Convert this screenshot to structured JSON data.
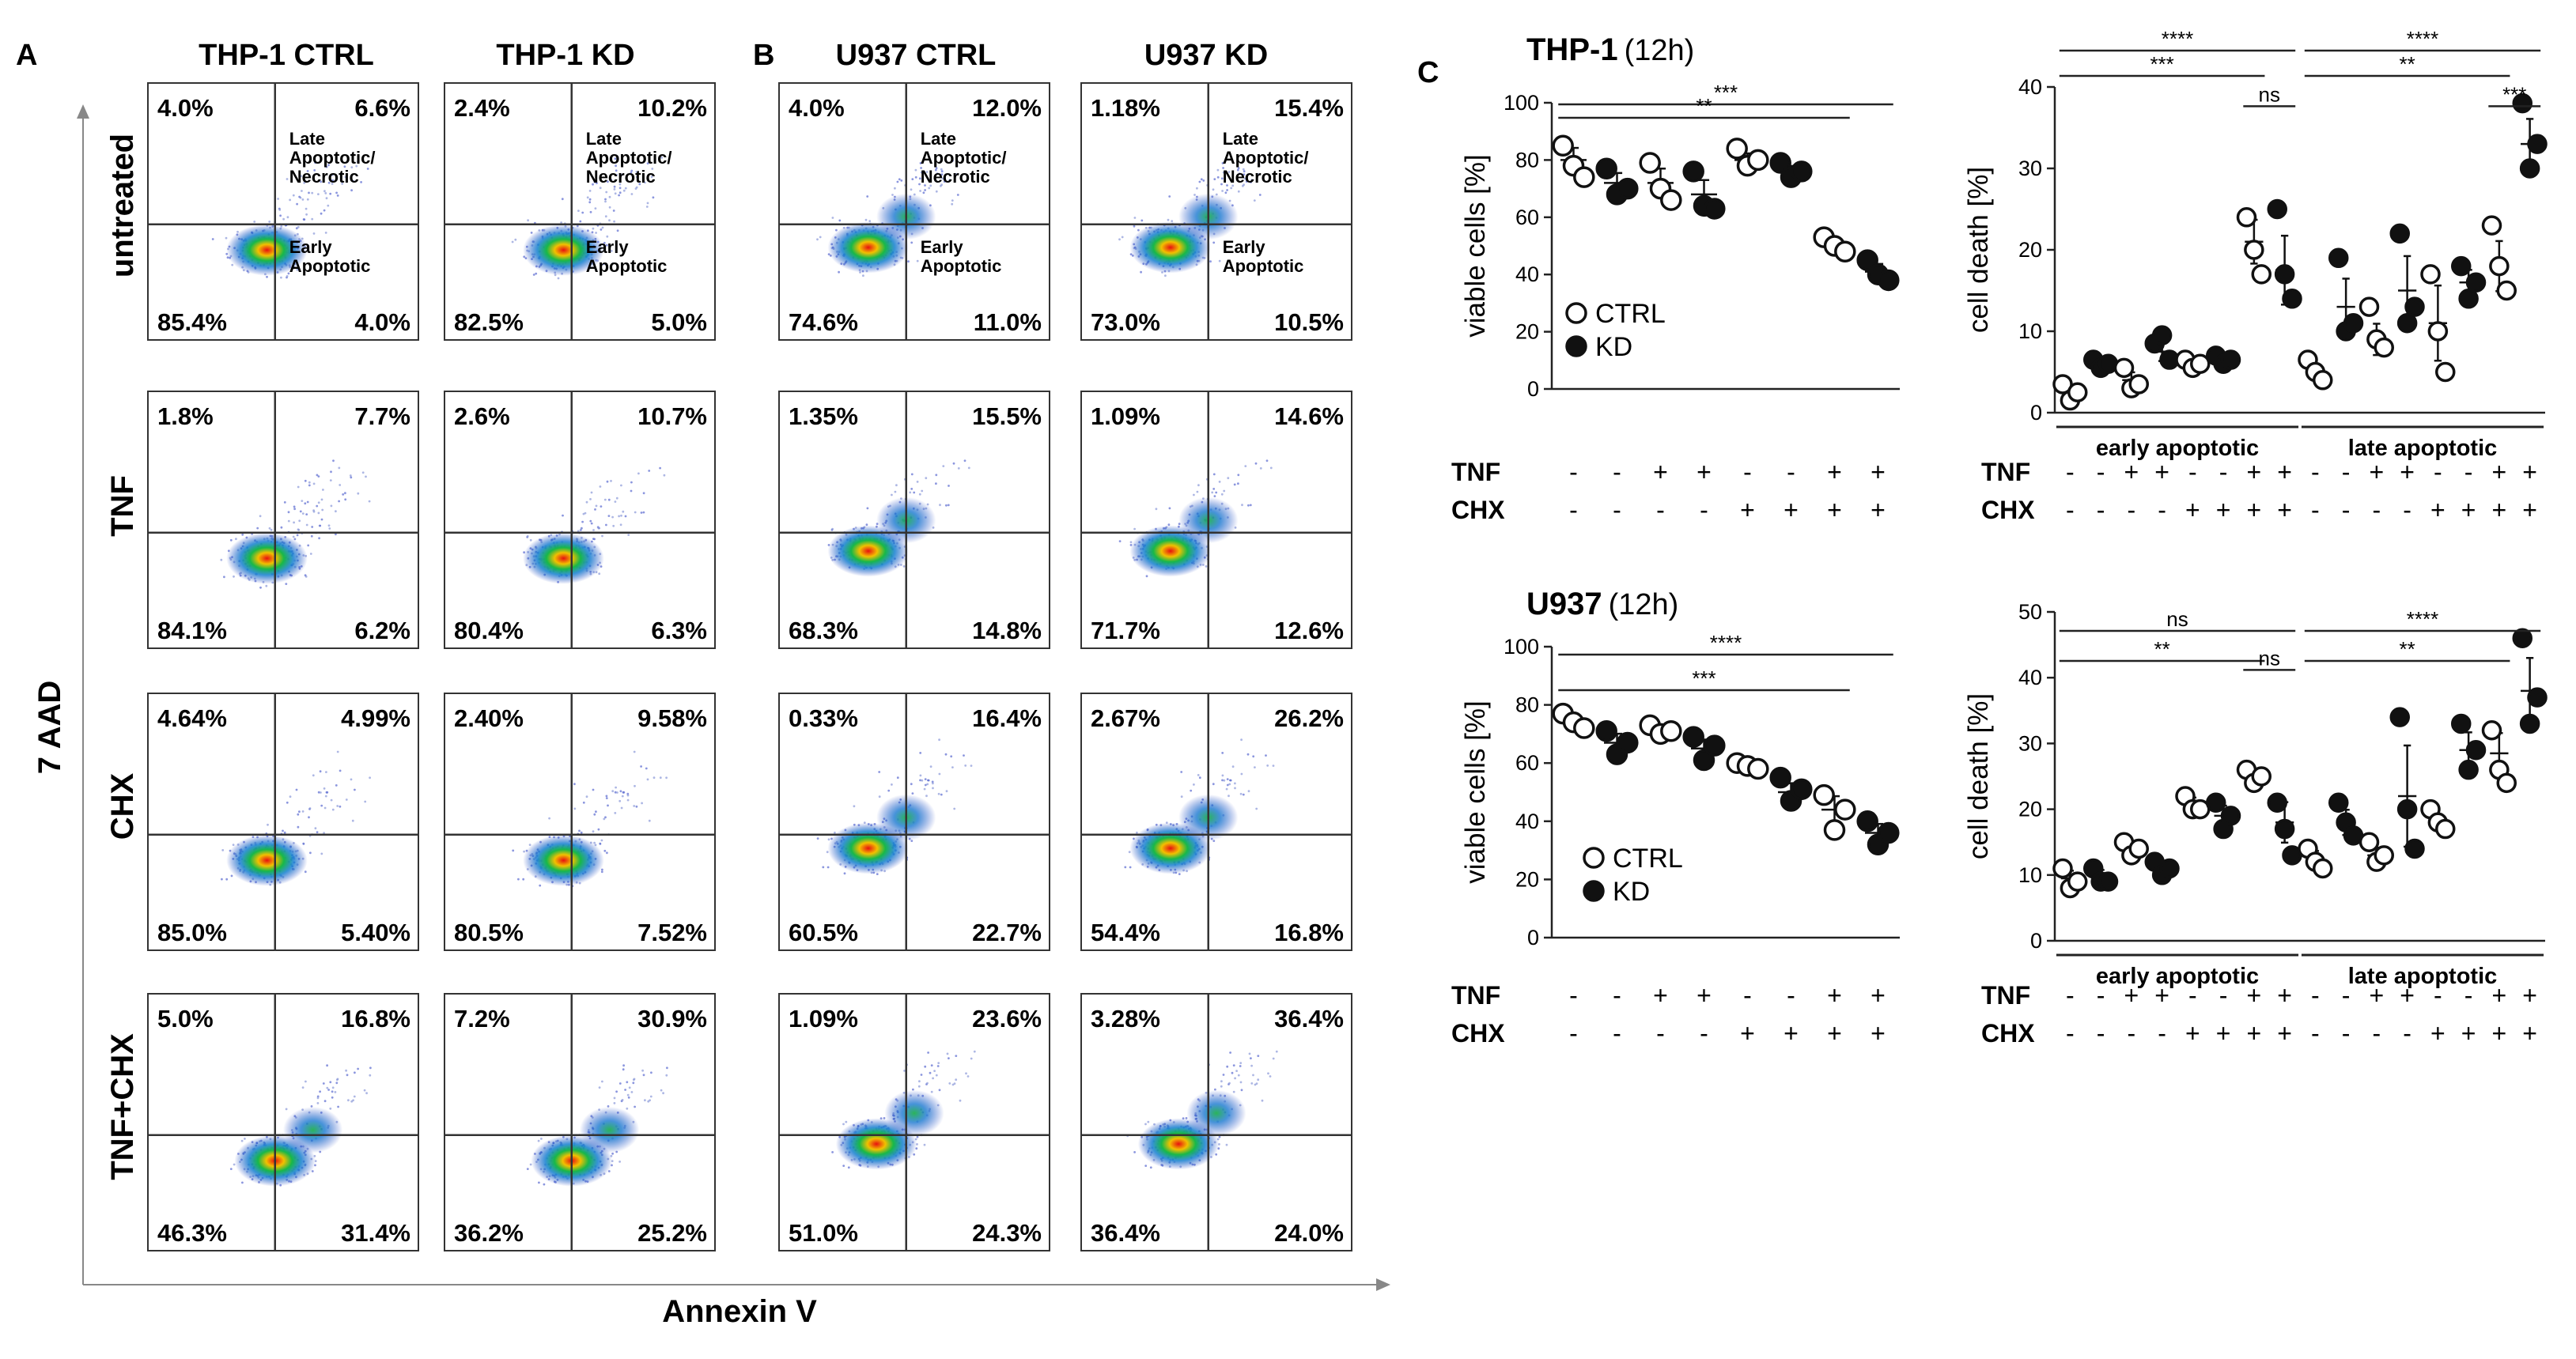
{
  "panel_labels": {
    "a": "A",
    "b": "B",
    "c": "C"
  },
  "headers": {
    "thp_ctrl": "THP-1 CTRL",
    "thp_kd": "THP-1 KD",
    "u937_ctrl": "U937 CTRL",
    "u937_kd": "U937 KD"
  },
  "row_labels": [
    "untreated",
    "TNF",
    "CHX",
    "TNF+CHX"
  ],
  "axis": {
    "y": "7 AAD",
    "x": "Annexin V"
  },
  "flow_annotations": {
    "late": "Late\nApoptotic/\nNecrotic",
    "early": "Early\nApoptotic"
  },
  "flow_data": {
    "thp_ctrl": [
      [
        "4.0%",
        "6.6%",
        "85.4%",
        "4.0%"
      ],
      [
        "1.8%",
        "7.7%",
        "84.1%",
        "6.2%"
      ],
      [
        "4.64%",
        "4.99%",
        "85.0%",
        "5.40%"
      ],
      [
        "5.0%",
        "16.8%",
        "46.3%",
        "31.4%"
      ]
    ],
    "thp_kd": [
      [
        "2.4%",
        "10.2%",
        "82.5%",
        "5.0%"
      ],
      [
        "2.6%",
        "10.7%",
        "80.4%",
        "6.3%"
      ],
      [
        "2.40%",
        "9.58%",
        "80.5%",
        "7.52%"
      ],
      [
        "7.2%",
        "30.9%",
        "36.2%",
        "25.2%"
      ]
    ],
    "u937_ctrl": [
      [
        "4.0%",
        "12.0%",
        "74.6%",
        "11.0%"
      ],
      [
        "1.35%",
        "15.5%",
        "68.3%",
        "14.8%"
      ],
      [
        "0.33%",
        "16.4%",
        "60.5%",
        "22.7%"
      ],
      [
        "1.09%",
        "23.6%",
        "51.0%",
        "24.3%"
      ]
    ],
    "u937_kd": [
      [
        "1.18%",
        "15.4%",
        "73.0%",
        "10.5%"
      ],
      [
        "1.09%",
        "14.6%",
        "71.7%",
        "12.6%"
      ],
      [
        "2.67%",
        "26.2%",
        "54.4%",
        "16.8%"
      ],
      [
        "3.28%",
        "36.4%",
        "36.4%",
        "24.0%"
      ]
    ]
  },
  "treatment": {
    "tnf_label": "TNF",
    "chx_label": "CHX",
    "tnf_8": [
      "-",
      "-",
      "+",
      "+",
      "-",
      "-",
      "+",
      "+"
    ],
    "chx_8": [
      "-",
      "-",
      "-",
      "-",
      "+",
      "+",
      "+",
      "+"
    ],
    "tnf_16": [
      "-",
      "-",
      "+",
      "+",
      "-",
      "-",
      "+",
      "+",
      "-",
      "-",
      "+",
      "+",
      "-",
      "-",
      "+",
      "+"
    ],
    "chx_16": [
      "-",
      "-",
      "-",
      "-",
      "+",
      "+",
      "+",
      "+",
      "-",
      "-",
      "-",
      "-",
      "+",
      "+",
      "+",
      "+"
    ]
  },
  "legend": {
    "ctrl": "CTRL",
    "kd": "KD"
  },
  "groups": {
    "early": "early apoptotic",
    "late": "late apoptotic"
  },
  "chart_data": [
    {
      "id": "thp1_viable",
      "type": "scatter",
      "title": "THP-1",
      "subtitle": "(12h)",
      "ylabel": "viable cells [%]",
      "ylim": [
        0,
        100
      ],
      "yticks": [
        0,
        20,
        40,
        60,
        80,
        100
      ],
      "groups": [
        {
          "kind": "ctrl",
          "values": [
            85,
            78,
            74
          ],
          "mean": 80
        },
        {
          "kind": "kd",
          "values": [
            77,
            68,
            70
          ],
          "mean": 72
        },
        {
          "kind": "ctrl",
          "values": [
            79,
            70,
            66
          ],
          "mean": 72
        },
        {
          "kind": "kd",
          "values": [
            76,
            64,
            63
          ],
          "mean": 68
        },
        {
          "kind": "ctrl",
          "values": [
            84,
            78,
            80
          ],
          "mean": 80
        },
        {
          "kind": "kd",
          "values": [
            79,
            74,
            76
          ],
          "mean": 76
        },
        {
          "kind": "ctrl",
          "values": [
            53,
            50,
            48
          ],
          "mean": 50
        },
        {
          "kind": "kd",
          "values": [
            45,
            40,
            38
          ],
          "mean": 41
        }
      ],
      "significance": [
        {
          "label": "***",
          "from": 1,
          "to": 8
        },
        {
          "label": "**",
          "from": 1,
          "to": 7
        }
      ]
    },
    {
      "id": "u937_viable",
      "type": "scatter",
      "title": "U937",
      "subtitle": "(12h)",
      "ylabel": "viable cells [%]",
      "ylim": [
        0,
        100
      ],
      "yticks": [
        0,
        20,
        40,
        60,
        80,
        100
      ],
      "groups": [
        {
          "kind": "ctrl",
          "values": [
            77,
            74,
            72
          ],
          "mean": 74
        },
        {
          "kind": "kd",
          "values": [
            71,
            63,
            67
          ],
          "mean": 67
        },
        {
          "kind": "ctrl",
          "values": [
            73,
            70,
            71
          ],
          "mean": 71
        },
        {
          "kind": "kd",
          "values": [
            69,
            61,
            66
          ],
          "mean": 65
        },
        {
          "kind": "ctrl",
          "values": [
            60,
            59,
            58
          ],
          "mean": 59
        },
        {
          "kind": "kd",
          "values": [
            55,
            47,
            51
          ],
          "mean": 50
        },
        {
          "kind": "ctrl",
          "values": [
            49,
            37,
            44
          ],
          "mean": 44
        },
        {
          "kind": "kd",
          "values": [
            40,
            32,
            36
          ],
          "mean": 36
        }
      ],
      "significance": [
        {
          "label": "****",
          "from": 1,
          "to": 8
        },
        {
          "label": "***",
          "from": 1,
          "to": 7
        }
      ]
    },
    {
      "id": "thp1_death",
      "type": "scatter",
      "ylabel": "cell death  [%]",
      "ylim": [
        0,
        40
      ],
      "yticks": [
        0,
        10,
        20,
        30,
        40
      ],
      "groups": [
        {
          "kind": "ctrl",
          "values": [
            3.5,
            1.5,
            2.5
          ],
          "mean": 2.5
        },
        {
          "kind": "kd",
          "values": [
            6.5,
            5.5,
            6.0
          ],
          "mean": 6.0
        },
        {
          "kind": "ctrl",
          "values": [
            5.5,
            3.0,
            3.5
          ],
          "mean": 4.0
        },
        {
          "kind": "kd",
          "values": [
            8.5,
            9.5,
            6.5
          ],
          "mean": 7.5
        },
        {
          "kind": "ctrl",
          "values": [
            6.5,
            5.5,
            6.0
          ],
          "mean": 6.0
        },
        {
          "kind": "kd",
          "values": [
            7.0,
            6.0,
            6.5
          ],
          "mean": 6.5
        },
        {
          "kind": "ctrl",
          "values": [
            24,
            20,
            17
          ],
          "mean": 21
        },
        {
          "kind": "kd",
          "values": [
            25,
            17,
            14
          ],
          "mean": 17.5
        },
        {
          "kind": "ctrl",
          "values": [
            6.5,
            5.0,
            4.0
          ],
          "mean": 5.0
        },
        {
          "kind": "kd",
          "values": [
            19,
            10,
            11
          ],
          "mean": 13
        },
        {
          "kind": "ctrl",
          "values": [
            13,
            9,
            8
          ],
          "mean": 9
        },
        {
          "kind": "kd",
          "values": [
            22,
            11,
            13
          ],
          "mean": 15
        },
        {
          "kind": "ctrl",
          "values": [
            17,
            10,
            5
          ],
          "mean": 11
        },
        {
          "kind": "kd",
          "values": [
            18,
            14,
            16
          ],
          "mean": 16
        },
        {
          "kind": "ctrl",
          "values": [
            23,
            18,
            15
          ],
          "mean": 18
        },
        {
          "kind": "kd",
          "values": [
            38,
            30,
            33
          ],
          "mean": 33
        }
      ],
      "significance": [
        {
          "label": "****",
          "from": 1,
          "to": 8
        },
        {
          "label": "***",
          "from": 1,
          "to": 7
        },
        {
          "label": "ns",
          "from": 7,
          "to": 8
        },
        {
          "label": "****",
          "from": 9,
          "to": 16
        },
        {
          "label": "**",
          "from": 9,
          "to": 15
        },
        {
          "label": "***",
          "from": 15,
          "to": 16
        }
      ]
    },
    {
      "id": "u937_death",
      "type": "scatter",
      "ylabel": "cell death  [%]",
      "ylim": [
        0,
        50
      ],
      "yticks": [
        0,
        10,
        20,
        30,
        40,
        50
      ],
      "groups": [
        {
          "kind": "ctrl",
          "values": [
            11,
            8,
            9
          ],
          "mean": 9.5
        },
        {
          "kind": "kd",
          "values": [
            11,
            9,
            9
          ],
          "mean": 10
        },
        {
          "kind": "ctrl",
          "values": [
            15,
            13,
            14
          ],
          "mean": 14
        },
        {
          "kind": "kd",
          "values": [
            12,
            10,
            11
          ],
          "mean": 11
        },
        {
          "kind": "ctrl",
          "values": [
            22,
            20,
            20
          ],
          "mean": 21
        },
        {
          "kind": "kd",
          "values": [
            21,
            17,
            19
          ],
          "mean": 19
        },
        {
          "kind": "ctrl",
          "values": [
            26,
            24,
            25
          ],
          "mean": 25
        },
        {
          "kind": "kd",
          "values": [
            21,
            17,
            13
          ],
          "mean": 18
        },
        {
          "kind": "ctrl",
          "values": [
            14,
            12,
            11
          ],
          "mean": 12.5
        },
        {
          "kind": "kd",
          "values": [
            21,
            18,
            16
          ],
          "mean": 18
        },
        {
          "kind": "ctrl",
          "values": [
            15,
            12,
            13
          ],
          "mean": 13
        },
        {
          "kind": "kd",
          "values": [
            34,
            20,
            14
          ],
          "mean": 22
        },
        {
          "kind": "ctrl",
          "values": [
            20,
            18,
            17
          ],
          "mean": 18
        },
        {
          "kind": "kd",
          "values": [
            33,
            26,
            29
          ],
          "mean": 29
        },
        {
          "kind": "ctrl",
          "values": [
            32,
            26,
            24
          ],
          "mean": 28.5
        },
        {
          "kind": "kd",
          "values": [
            46,
            33,
            37
          ],
          "mean": 38
        }
      ],
      "significance": [
        {
          "label": "ns",
          "from": 1,
          "to": 8
        },
        {
          "label": "**",
          "from": 1,
          "to": 7
        },
        {
          "label": "ns",
          "from": 7,
          "to": 8
        },
        {
          "label": "****",
          "from": 9,
          "to": 16
        },
        {
          "label": "**",
          "from": 9,
          "to": 15
        }
      ]
    }
  ]
}
